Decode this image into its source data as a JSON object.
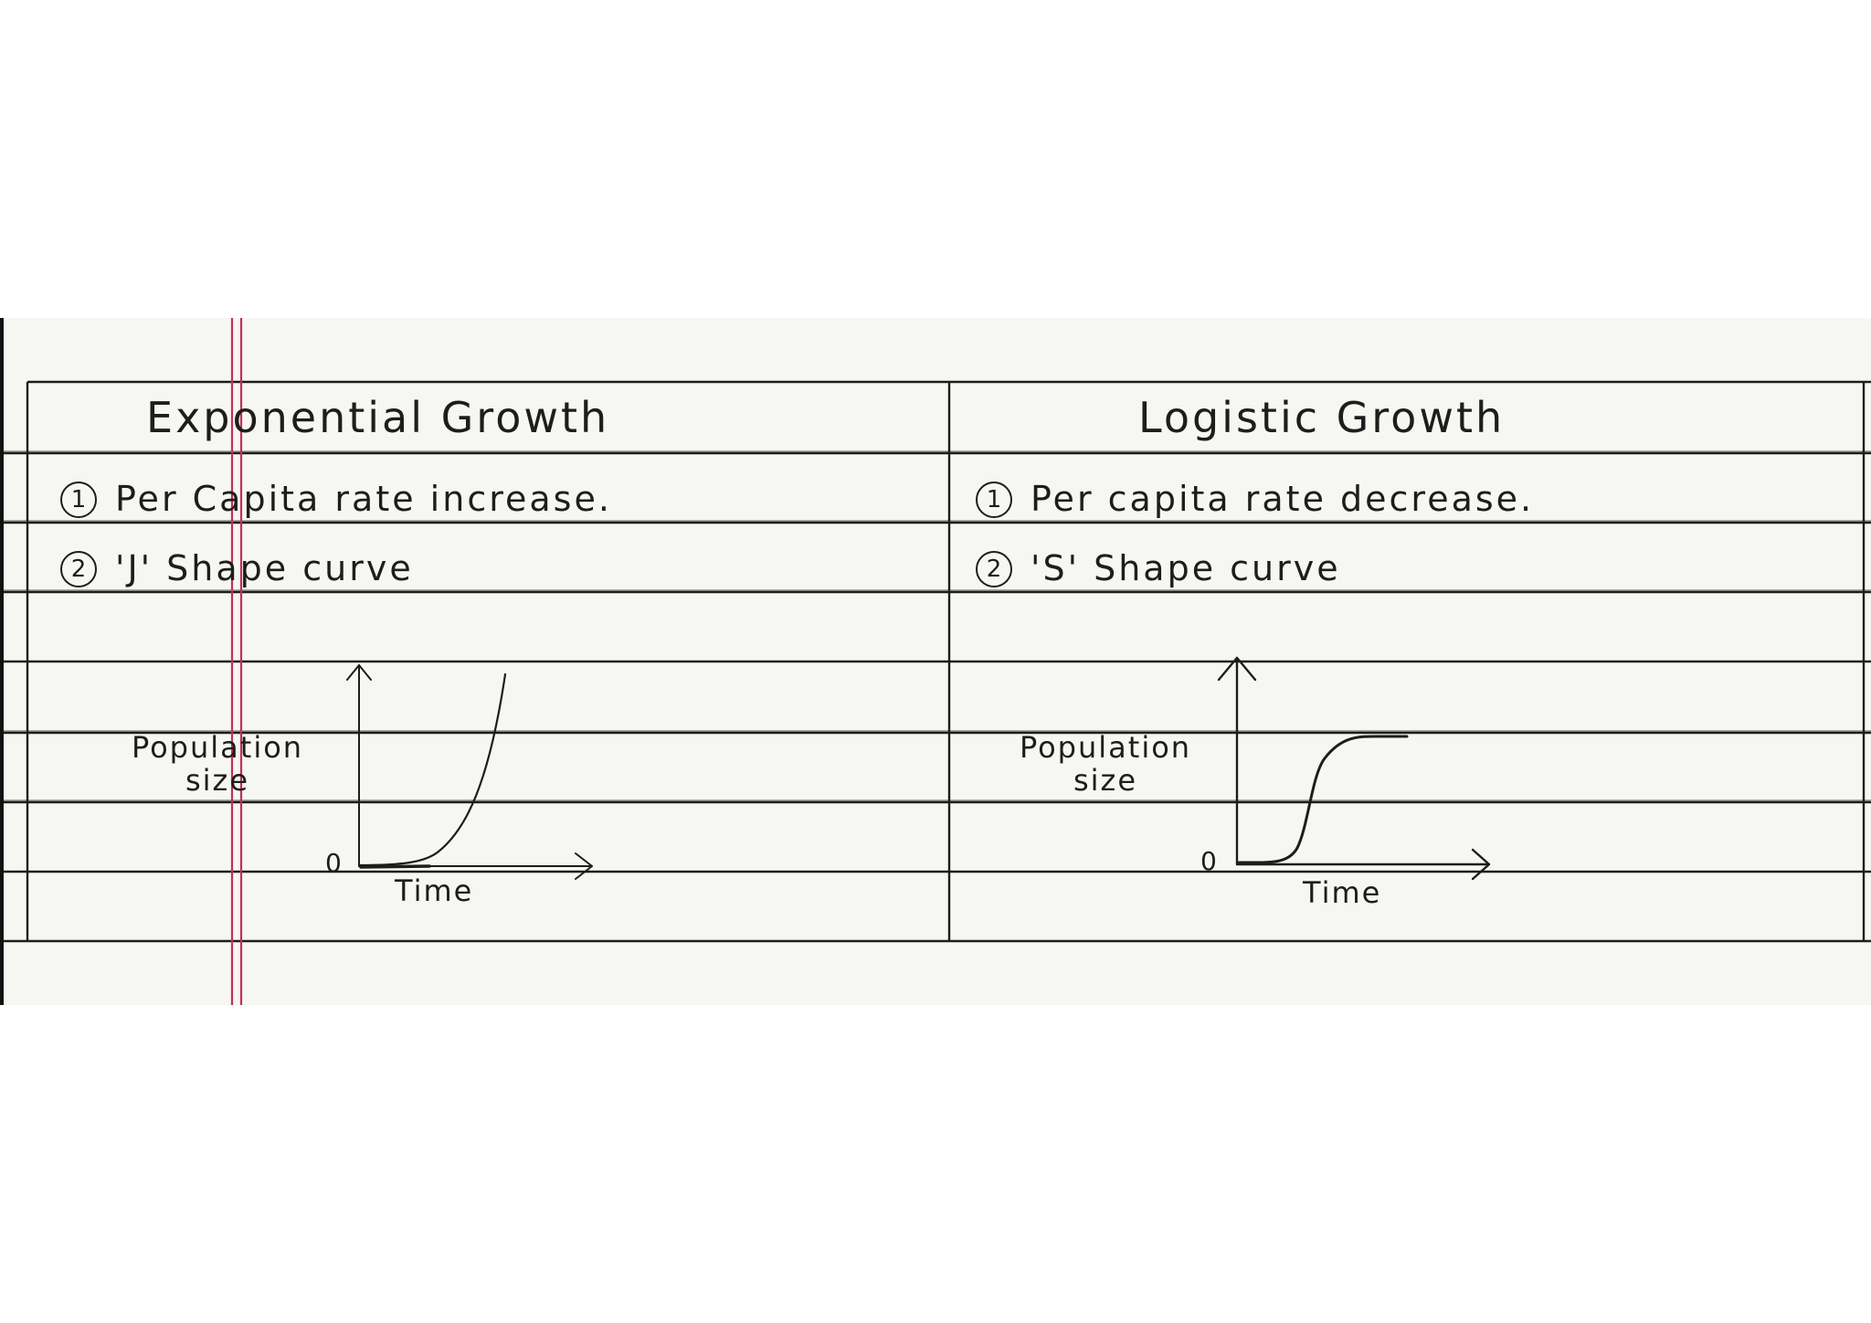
{
  "columns": [
    {
      "id": "exponential",
      "title": "Exponential Growth",
      "points": [
        {
          "num": "1",
          "text": "Per Capita rate increase."
        },
        {
          "num": "2",
          "text": "'J' Shape curve"
        }
      ],
      "graph": {
        "y_label_line1": "Population",
        "y_label_line2": "size",
        "x_label": "Time",
        "origin": "0",
        "curve": "J"
      }
    },
    {
      "id": "logistic",
      "title": "Logistic Growth",
      "points": [
        {
          "num": "1",
          "text": "Per capita rate decrease."
        },
        {
          "num": "2",
          "text": "'S' Shape curve"
        }
      ],
      "graph": {
        "y_label_line1": "Population",
        "y_label_line2": "size",
        "x_label": "Time",
        "origin": "0",
        "curve": "S"
      }
    }
  ],
  "colors": {
    "paper": "#f6f6f3",
    "ruled_line": "#2a2a2a",
    "margin_line": "#c0305a",
    "ink": "#1d1d1d"
  }
}
